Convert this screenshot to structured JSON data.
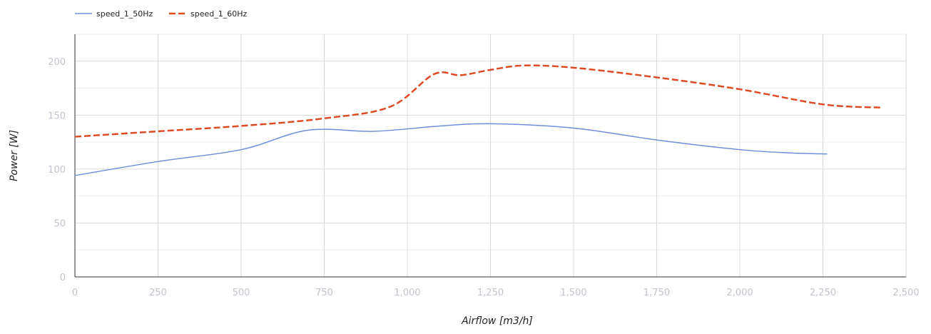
{
  "chart_data": {
    "type": "line",
    "xlabel": "Airflow [m3/h]",
    "ylabel": "Power [W]",
    "xlim": [
      0,
      2500
    ],
    "ylim": [
      0,
      225
    ],
    "x_ticks": [
      "0",
      "250",
      "500",
      "750",
      "1,000",
      "1,250",
      "1,500",
      "1,750",
      "2,000",
      "2,250",
      "2,500"
    ],
    "y_ticks": [
      "0",
      "50",
      "100",
      "150",
      "200"
    ],
    "x_tick_values": [
      0,
      250,
      500,
      750,
      1000,
      1250,
      1500,
      1750,
      2000,
      2250,
      2500
    ],
    "y_tick_values": [
      0,
      50,
      100,
      150,
      200
    ],
    "grid": true,
    "minor_grid": true,
    "legend_position": "top-left",
    "series": [
      {
        "name": "speed_1_50Hz",
        "color": "#6f8fdb",
        "style": "solid",
        "x": [
          0,
          250,
          500,
          700,
          900,
          1100,
          1250,
          1500,
          1750,
          2000,
          2150,
          2263
        ],
        "y": [
          94,
          107,
          118,
          136,
          135,
          140,
          142,
          138,
          127,
          118,
          115,
          114
        ]
      },
      {
        "name": "speed_1_60Hz",
        "color": "#dd4b25",
        "style": "dashed",
        "x": [
          0,
          250,
          500,
          750,
          950,
          1080,
          1160,
          1250,
          1350,
          1500,
          1750,
          2000,
          2250,
          2425
        ],
        "y": [
          130,
          135,
          140,
          147,
          158,
          188,
          187,
          192,
          196,
          194,
          185,
          174,
          160,
          157
        ]
      }
    ]
  }
}
